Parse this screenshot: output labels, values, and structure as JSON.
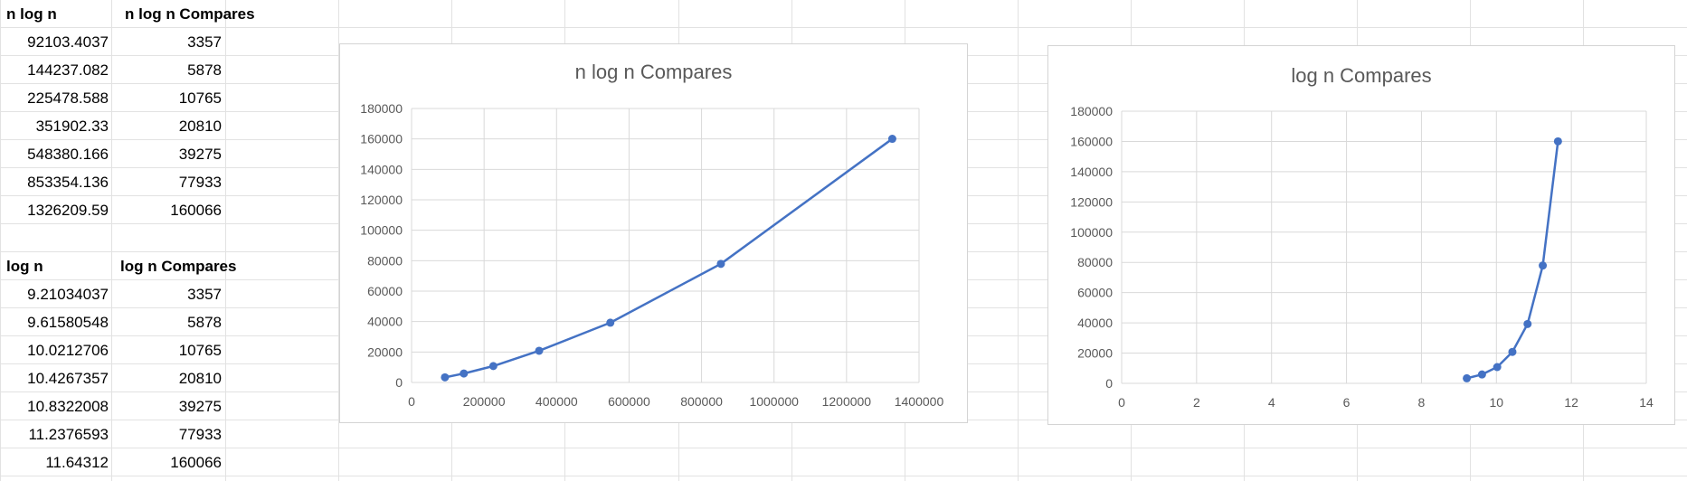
{
  "table1": {
    "headers": [
      "n log n",
      "n log n  Compares"
    ],
    "rows": [
      [
        "92103.4037",
        "3357"
      ],
      [
        "144237.082",
        "5878"
      ],
      [
        "225478.588",
        "10765"
      ],
      [
        "351902.33",
        "20810"
      ],
      [
        "548380.166",
        "39275"
      ],
      [
        "853354.136",
        "77933"
      ],
      [
        "1326209.59",
        "160066"
      ]
    ]
  },
  "table2": {
    "headers": [
      "log n",
      "log n  Compares"
    ],
    "rows": [
      [
        "9.21034037",
        "3357"
      ],
      [
        "9.61580548",
        "5878"
      ],
      [
        "10.0212706",
        "10765"
      ],
      [
        "10.4267357",
        "20810"
      ],
      [
        "10.8322008",
        "39275"
      ],
      [
        "11.2376593",
        "77933"
      ],
      [
        "11.64312",
        "160066"
      ]
    ]
  },
  "colors": {
    "series": "#4472c4",
    "gridline": "#d9d9d9",
    "sheet_grid": "#e2e2e2",
    "text_muted": "#595959"
  },
  "chart_data": [
    {
      "type": "scatter",
      "title": "n log n  Compares",
      "xlabel": "",
      "ylabel": "",
      "xlim": [
        0,
        1400000
      ],
      "ylim": [
        0,
        180000
      ],
      "xticks": [
        "0",
        "200000",
        "400000",
        "600000",
        "800000",
        "1000000",
        "1200000",
        "1400000"
      ],
      "yticks": [
        "0",
        "20000",
        "40000",
        "60000",
        "80000",
        "100000",
        "120000",
        "140000",
        "160000",
        "180000"
      ],
      "grid": true,
      "markers": true,
      "lines": true,
      "series": [
        {
          "x": [
            92103.4037,
            144237.082,
            225478.588,
            351902.33,
            548380.166,
            853354.136,
            1326209.59
          ],
          "y": [
            3357,
            5878,
            10765,
            20810,
            39275,
            77933,
            160066
          ]
        }
      ]
    },
    {
      "type": "scatter",
      "title": "log n  Compares",
      "xlabel": "",
      "ylabel": "",
      "xlim": [
        0,
        14
      ],
      "ylim": [
        0,
        180000
      ],
      "xticks": [
        "0",
        "2",
        "4",
        "6",
        "8",
        "10",
        "12",
        "14"
      ],
      "yticks": [
        "0",
        "20000",
        "40000",
        "60000",
        "80000",
        "100000",
        "120000",
        "140000",
        "160000",
        "180000"
      ],
      "grid": true,
      "markers": true,
      "lines": true,
      "series": [
        {
          "x": [
            9.21034037,
            9.61580548,
            10.0212706,
            10.4267357,
            10.8322008,
            11.2376593,
            11.64312
          ],
          "y": [
            3357,
            5878,
            10765,
            20810,
            39275,
            77933,
            160066
          ]
        }
      ]
    }
  ]
}
